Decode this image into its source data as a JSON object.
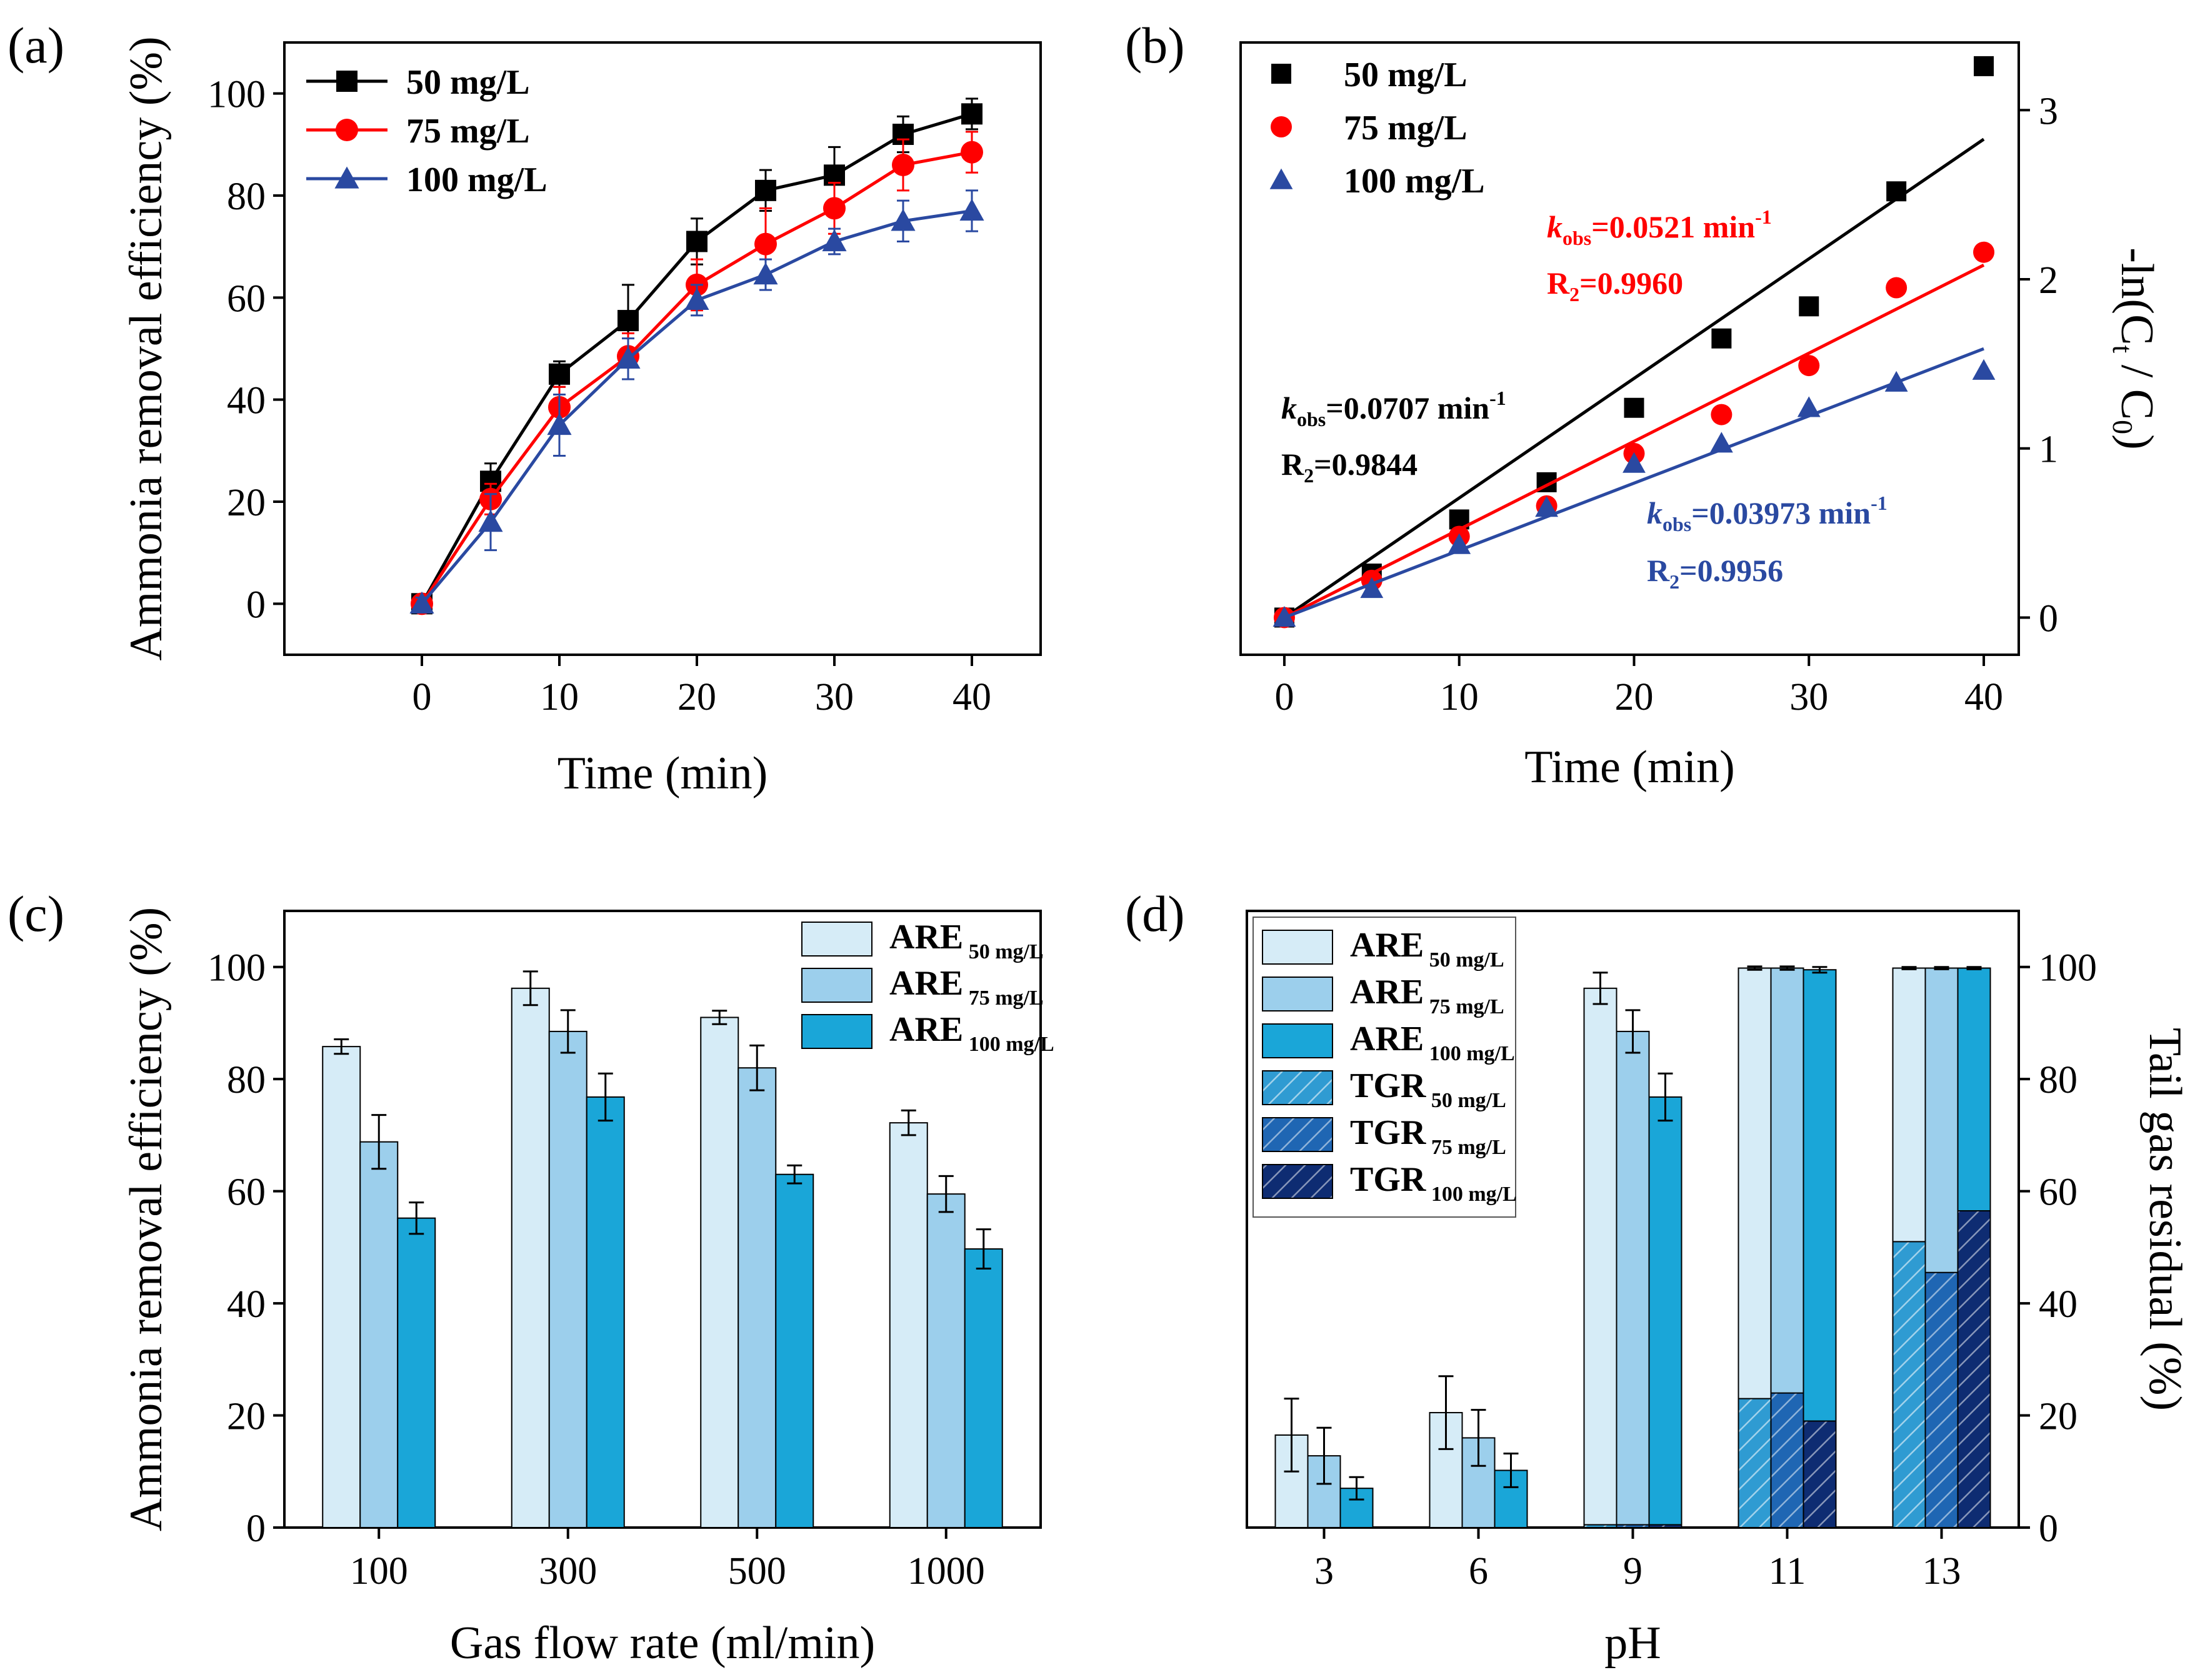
{
  "colors": {
    "s50": "#000000",
    "s75": "#ff0000",
    "s100": "#2a49a1",
    "are50": "#d6ecf7",
    "are75": "#9ccfec",
    "are100": "#1aa6d8",
    "tgr50": "#2f9bd2",
    "tgr75": "#1f66b3",
    "tgr100": "#0e2c72"
  },
  "chart_data": [
    {
      "panel": "(a)",
      "type": "line",
      "xlabel": "Time (min)",
      "ylabel": "Ammonia removal efficiency (%)",
      "xlim": [
        -10,
        45
      ],
      "ylim": [
        -10,
        110
      ],
      "xticks": [
        0,
        10,
        20,
        30,
        40
      ],
      "yticks": [
        0,
        20,
        40,
        60,
        80,
        100
      ],
      "x": [
        0,
        5,
        10,
        15,
        20,
        25,
        30,
        35,
        40
      ],
      "legend": "top-left",
      "series": [
        {
          "name": "50 mg/L",
          "color": "s50",
          "marker": "square",
          "values": [
            0,
            24,
            45,
            55.5,
            71,
            81,
            84,
            92,
            96
          ],
          "errors": [
            1.2,
            3.5,
            2.5,
            7,
            4.5,
            4,
            5.5,
            3.5,
            3
          ]
        },
        {
          "name": "75 mg/L",
          "color": "s75",
          "marker": "circle",
          "values": [
            0,
            20.5,
            38.5,
            48.5,
            62.5,
            70.5,
            77.5,
            86,
            88.5
          ],
          "errors": [
            1.2,
            3,
            4,
            4.5,
            5,
            7,
            5,
            5,
            4
          ]
        },
        {
          "name": "100 mg/L",
          "color": "s100",
          "marker": "triangle",
          "values": [
            0,
            16,
            35,
            48,
            59.5,
            64.5,
            71,
            75,
            77
          ],
          "errors": [
            1.2,
            5.5,
            6,
            4,
            3,
            3,
            2.5,
            4,
            4
          ]
        }
      ]
    },
    {
      "panel": "(b)",
      "type": "scatter",
      "xlabel": "Time (min)",
      "ylabel_main": "-ln(C",
      "ylabel_sub1": "t",
      "ylabel_mid": " / C",
      "ylabel_sub2": "0",
      "ylabel_end": ")",
      "xlim": [
        -2.5,
        42
      ],
      "ylim": [
        -0.22,
        3.4
      ],
      "xticks": [
        0,
        10,
        20,
        30,
        40
      ],
      "yticks": [
        0,
        1,
        2,
        3
      ],
      "x": [
        0,
        5,
        10,
        15,
        20,
        25,
        30,
        35,
        40
      ],
      "legend": "top-left",
      "series": [
        {
          "name": "50 mg/L",
          "color": "s50",
          "marker": "square",
          "values": [
            0,
            0.26,
            0.58,
            0.8,
            1.24,
            1.65,
            1.84,
            2.52,
            3.26
          ],
          "slope": 0.0707
        },
        {
          "name": "75 mg/L",
          "color": "s75",
          "marker": "circle",
          "values": [
            0,
            0.22,
            0.48,
            0.66,
            0.97,
            1.2,
            1.49,
            1.95,
            2.16
          ],
          "slope": 0.0521
        },
        {
          "name": "100 mg/L",
          "color": "s100",
          "marker": "triangle",
          "values": [
            0,
            0.17,
            0.43,
            0.65,
            0.91,
            1.03,
            1.24,
            1.39,
            1.46
          ],
          "slope": 0.03973
        }
      ],
      "annotations": [
        {
          "k": "k",
          "sub": "obs",
          "value": "=0.0521 min",
          "sup": "-1",
          "r": "R",
          "rsub": "2",
          "rvalue": "=0.9960",
          "color": "s75"
        },
        {
          "k": "k",
          "sub": "obs",
          "value": "=0.0707 min",
          "sup": "-1",
          "r": "R",
          "rsub": "2",
          "rvalue": "=0.9844",
          "color": "s50"
        },
        {
          "k": "k",
          "sub": "obs",
          "value": "=0.03973 min",
          "sup": "-1",
          "r": "R",
          "rsub": "2",
          "rvalue": "=0.9956",
          "color": "s100"
        }
      ]
    },
    {
      "panel": "(c)",
      "type": "bar",
      "xlabel": "Gas flow rate (ml/min)",
      "ylabel": "Ammonia removal efficiency (%)",
      "ylim": [
        0,
        110
      ],
      "yticks": [
        0,
        20,
        40,
        60,
        80,
        100
      ],
      "categories": [
        "100",
        "300",
        "500",
        "1000"
      ],
      "legend": "top-right",
      "series": [
        {
          "name": "ARE",
          "sub": "50 mg/L",
          "color": "are50",
          "values": [
            85.8,
            96.2,
            91,
            72.2
          ],
          "errors": [
            1.3,
            3,
            1.2,
            2.2
          ]
        },
        {
          "name": "ARE",
          "sub": "75 mg/L",
          "color": "are75",
          "values": [
            68.8,
            88.5,
            82,
            59.5
          ],
          "errors": [
            4.8,
            3.8,
            4,
            3.2
          ]
        },
        {
          "name": "ARE",
          "sub": "100 mg/L",
          "color": "are100",
          "values": [
            55.2,
            76.8,
            63,
            49.7
          ],
          "errors": [
            2.8,
            4.2,
            1.6,
            3.5
          ]
        }
      ]
    },
    {
      "panel": "(d)",
      "type": "bar",
      "xlabel": "pH",
      "ylabel": "Tail gas residual (%)",
      "ylim": [
        0,
        110
      ],
      "yticks": [
        0,
        20,
        40,
        60,
        80,
        100
      ],
      "categories": [
        "3",
        "6",
        "9",
        "11",
        "13"
      ],
      "legend": "top-left",
      "series": [
        {
          "name": "ARE",
          "sub": "50 mg/L",
          "color": "are50",
          "values": [
            16.5,
            20.5,
            96.2,
            99.8,
            99.8
          ],
          "errors": [
            6.5,
            6.5,
            2.8,
            0.3,
            0.2
          ]
        },
        {
          "name": "ARE",
          "sub": "75 mg/L",
          "color": "are75",
          "values": [
            12.8,
            16,
            88.5,
            99.8,
            99.8
          ],
          "errors": [
            5,
            5,
            3.8,
            0.3,
            0.2
          ]
        },
        {
          "name": "ARE",
          "sub": "100 mg/L",
          "color": "are100",
          "values": [
            7,
            10.2,
            76.8,
            99.5,
            99.8
          ],
          "errors": [
            2,
            3,
            4.2,
            0.5,
            0.2
          ]
        },
        {
          "name": "TGR",
          "sub": "50 mg/L",
          "color": "tgr50",
          "values": [
            0,
            0,
            0.5,
            23,
            51
          ]
        },
        {
          "name": "TGR",
          "sub": "75 mg/L",
          "color": "tgr75",
          "values": [
            0,
            0,
            0.5,
            24,
            45.5
          ]
        },
        {
          "name": "TGR",
          "sub": "100 mg/L",
          "color": "tgr100",
          "values": [
            0,
            0,
            0.5,
            19,
            56.5
          ]
        }
      ]
    }
  ]
}
